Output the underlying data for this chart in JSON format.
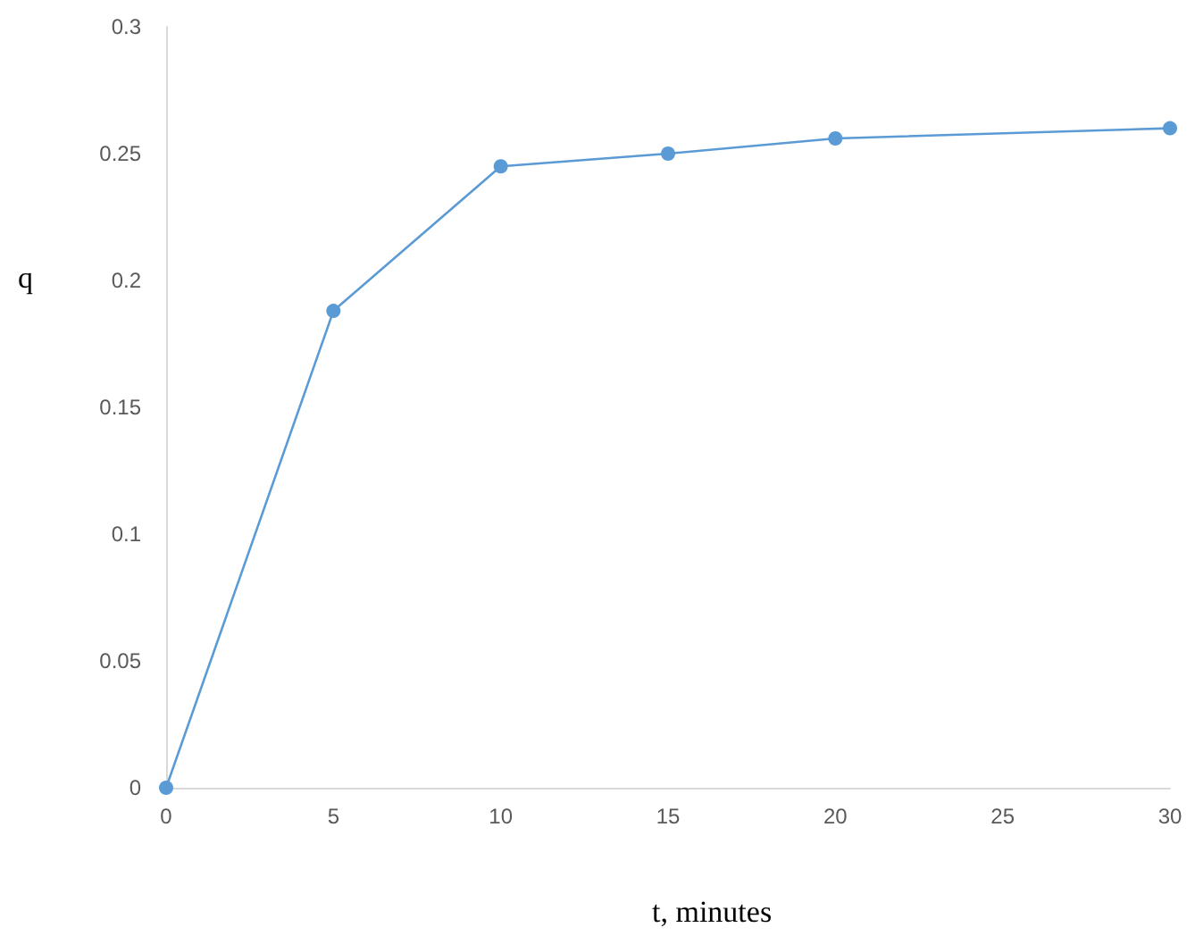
{
  "chart_data": {
    "type": "line",
    "xlabel": "t, minutes",
    "ylabel": "q",
    "x": [
      0,
      5,
      10,
      15,
      20,
      30
    ],
    "series": [
      {
        "color": "#5b9bd5",
        "values": [
          0,
          0.188,
          0.245,
          0.25,
          0.256,
          0.26
        ]
      }
    ],
    "xlim": [
      0,
      30
    ],
    "xticks": [
      0,
      5,
      10,
      15,
      20,
      25,
      30
    ],
    "ylim": [
      0,
      0.3
    ],
    "yticks": [
      0,
      0.05,
      0.1,
      0.15,
      0.2,
      0.25,
      0.3
    ],
    "grid": false,
    "marker": "circle",
    "line_style": "solid"
  }
}
